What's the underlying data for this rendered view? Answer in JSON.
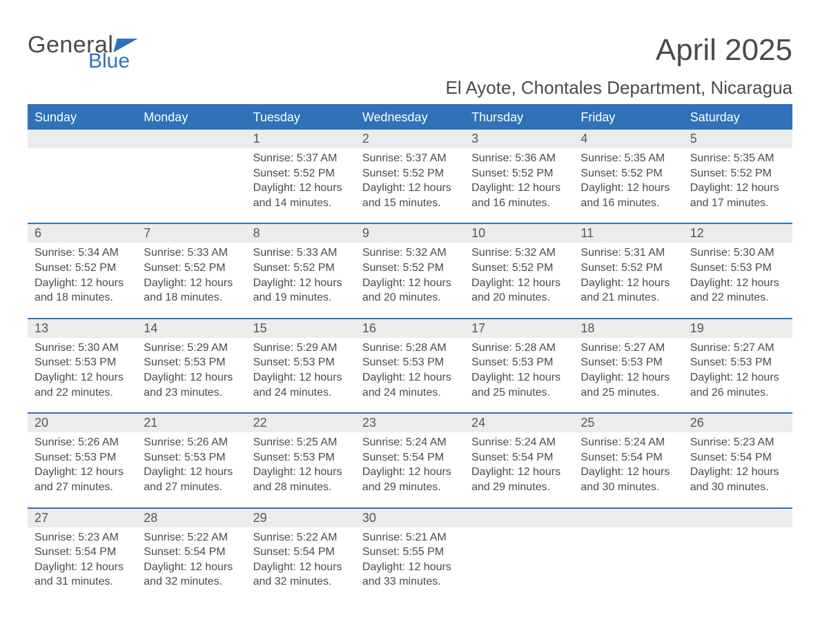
{
  "brand": {
    "word1": "General",
    "word2": "Blue"
  },
  "title": "April 2025",
  "location": "El Ayote, Chontales Department, Nicaragua",
  "colors": {
    "accent": "#2f72b8",
    "header_text": "#ffffff",
    "daynum_bg": "#ececec",
    "body_text": "#4a4a4a",
    "page_bg": "#ffffff"
  },
  "typography": {
    "title_fontsize_pt": 33,
    "location_fontsize_pt": 20,
    "header_fontsize_pt": 14,
    "daynum_fontsize_pt": 14,
    "body_fontsize_pt": 12,
    "font_family": "Arial"
  },
  "layout": {
    "columns": 7,
    "weeks": 5,
    "col_width_pct": 14.2857
  },
  "calendar": {
    "day_headers": [
      "Sunday",
      "Monday",
      "Tuesday",
      "Wednesday",
      "Thursday",
      "Friday",
      "Saturday"
    ],
    "sunrise_label": "Sunrise:",
    "sunset_label": "Sunset:",
    "daylight_label": "Daylight:",
    "hours_word": "hours",
    "and_word": "and",
    "minutes_suffix": "minutes.",
    "weeks": [
      [
        null,
        null,
        {
          "n": "1",
          "sunrise": "5:37 AM",
          "sunset": "5:52 PM",
          "dh": "12",
          "dm": "14"
        },
        {
          "n": "2",
          "sunrise": "5:37 AM",
          "sunset": "5:52 PM",
          "dh": "12",
          "dm": "15"
        },
        {
          "n": "3",
          "sunrise": "5:36 AM",
          "sunset": "5:52 PM",
          "dh": "12",
          "dm": "16"
        },
        {
          "n": "4",
          "sunrise": "5:35 AM",
          "sunset": "5:52 PM",
          "dh": "12",
          "dm": "16"
        },
        {
          "n": "5",
          "sunrise": "5:35 AM",
          "sunset": "5:52 PM",
          "dh": "12",
          "dm": "17"
        }
      ],
      [
        {
          "n": "6",
          "sunrise": "5:34 AM",
          "sunset": "5:52 PM",
          "dh": "12",
          "dm": "18"
        },
        {
          "n": "7",
          "sunrise": "5:33 AM",
          "sunset": "5:52 PM",
          "dh": "12",
          "dm": "18"
        },
        {
          "n": "8",
          "sunrise": "5:33 AM",
          "sunset": "5:52 PM",
          "dh": "12",
          "dm": "19"
        },
        {
          "n": "9",
          "sunrise": "5:32 AM",
          "sunset": "5:52 PM",
          "dh": "12",
          "dm": "20"
        },
        {
          "n": "10",
          "sunrise": "5:32 AM",
          "sunset": "5:52 PM",
          "dh": "12",
          "dm": "20"
        },
        {
          "n": "11",
          "sunrise": "5:31 AM",
          "sunset": "5:52 PM",
          "dh": "12",
          "dm": "21"
        },
        {
          "n": "12",
          "sunrise": "5:30 AM",
          "sunset": "5:53 PM",
          "dh": "12",
          "dm": "22"
        }
      ],
      [
        {
          "n": "13",
          "sunrise": "5:30 AM",
          "sunset": "5:53 PM",
          "dh": "12",
          "dm": "22"
        },
        {
          "n": "14",
          "sunrise": "5:29 AM",
          "sunset": "5:53 PM",
          "dh": "12",
          "dm": "23"
        },
        {
          "n": "15",
          "sunrise": "5:29 AM",
          "sunset": "5:53 PM",
          "dh": "12",
          "dm": "24"
        },
        {
          "n": "16",
          "sunrise": "5:28 AM",
          "sunset": "5:53 PM",
          "dh": "12",
          "dm": "24"
        },
        {
          "n": "17",
          "sunrise": "5:28 AM",
          "sunset": "5:53 PM",
          "dh": "12",
          "dm": "25"
        },
        {
          "n": "18",
          "sunrise": "5:27 AM",
          "sunset": "5:53 PM",
          "dh": "12",
          "dm": "25"
        },
        {
          "n": "19",
          "sunrise": "5:27 AM",
          "sunset": "5:53 PM",
          "dh": "12",
          "dm": "26"
        }
      ],
      [
        {
          "n": "20",
          "sunrise": "5:26 AM",
          "sunset": "5:53 PM",
          "dh": "12",
          "dm": "27"
        },
        {
          "n": "21",
          "sunrise": "5:26 AM",
          "sunset": "5:53 PM",
          "dh": "12",
          "dm": "27"
        },
        {
          "n": "22",
          "sunrise": "5:25 AM",
          "sunset": "5:53 PM",
          "dh": "12",
          "dm": "28"
        },
        {
          "n": "23",
          "sunrise": "5:24 AM",
          "sunset": "5:54 PM",
          "dh": "12",
          "dm": "29"
        },
        {
          "n": "24",
          "sunrise": "5:24 AM",
          "sunset": "5:54 PM",
          "dh": "12",
          "dm": "29"
        },
        {
          "n": "25",
          "sunrise": "5:24 AM",
          "sunset": "5:54 PM",
          "dh": "12",
          "dm": "30"
        },
        {
          "n": "26",
          "sunrise": "5:23 AM",
          "sunset": "5:54 PM",
          "dh": "12",
          "dm": "30"
        }
      ],
      [
        {
          "n": "27",
          "sunrise": "5:23 AM",
          "sunset": "5:54 PM",
          "dh": "12",
          "dm": "31"
        },
        {
          "n": "28",
          "sunrise": "5:22 AM",
          "sunset": "5:54 PM",
          "dh": "12",
          "dm": "32"
        },
        {
          "n": "29",
          "sunrise": "5:22 AM",
          "sunset": "5:54 PM",
          "dh": "12",
          "dm": "32"
        },
        {
          "n": "30",
          "sunrise": "5:21 AM",
          "sunset": "5:55 PM",
          "dh": "12",
          "dm": "33"
        },
        null,
        null,
        null
      ]
    ]
  }
}
